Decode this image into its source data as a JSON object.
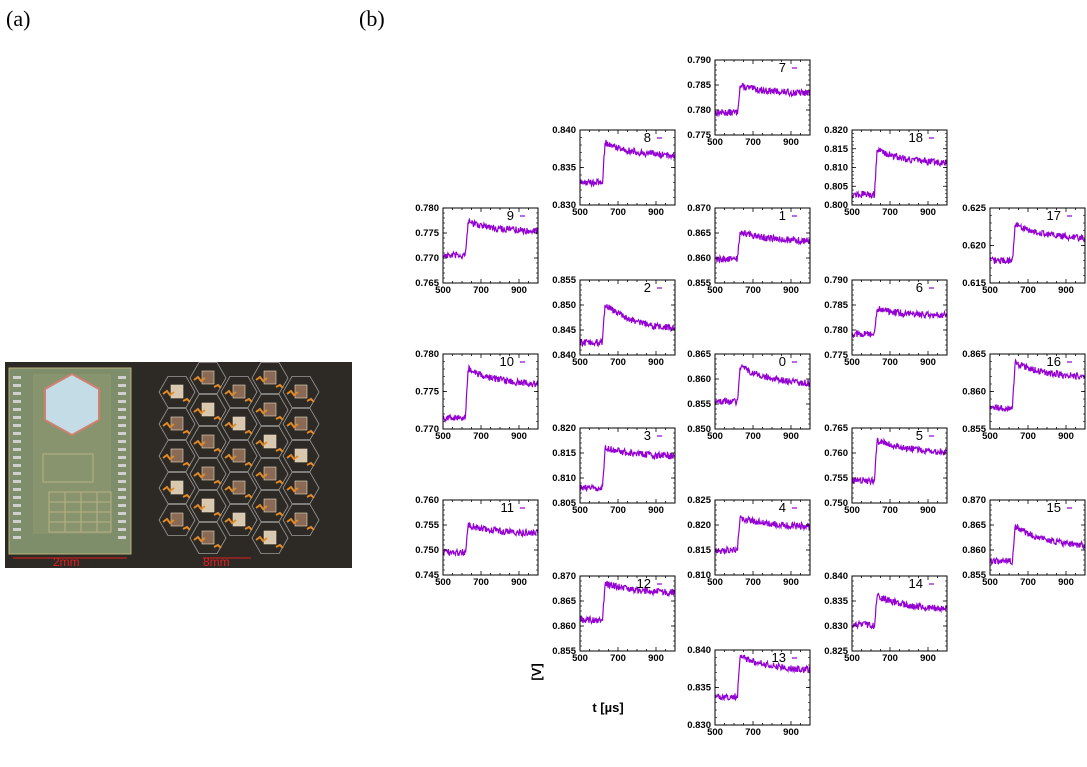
{
  "figure": {
    "label_a": "(a)",
    "label_b": "(b)"
  },
  "photo": {
    "scale_left": "2mm",
    "scale_right": "8mm"
  },
  "axes": {
    "xlabel": "t [µs]",
    "ylabel": "[V]",
    "xticks": [
      "500",
      "700",
      "900"
    ]
  },
  "colors": {
    "trace": "#9400d3",
    "photo_bg": "#2d2925",
    "chip": "#7e8d6a",
    "hex_pad": "#c4dce6",
    "scale_text": "#e02020"
  },
  "chart_data": [
    {
      "type": "line",
      "key": "7",
      "xlim": [
        500,
        1000
      ],
      "ylim": [
        0.775,
        0.79
      ],
      "yticks": [
        "0.790",
        "0.785",
        "0.780",
        "0.775"
      ],
      "baseline": 0.7795,
      "peak": 0.7848,
      "end": 0.7832
    },
    {
      "type": "line",
      "key": "8",
      "xlim": [
        500,
        1000
      ],
      "ylim": [
        0.83,
        0.84
      ],
      "yticks": [
        "0.840",
        "0.835",
        "0.830"
      ],
      "baseline": 0.833,
      "peak": 0.8383,
      "end": 0.8364
    },
    {
      "type": "line",
      "key": "18",
      "xlim": [
        500,
        1000
      ],
      "ylim": [
        0.8,
        0.82
      ],
      "yticks": [
        "0.820",
        "0.815",
        "0.810",
        "0.805",
        "0.800"
      ],
      "baseline": 0.8028,
      "peak": 0.8148,
      "end": 0.8108
    },
    {
      "type": "line",
      "key": "9",
      "xlim": [
        500,
        1000
      ],
      "ylim": [
        0.765,
        0.78
      ],
      "yticks": [
        "0.780",
        "0.775",
        "0.770",
        "0.765"
      ],
      "baseline": 0.7705,
      "peak": 0.7772,
      "end": 0.7752
    },
    {
      "type": "line",
      "key": "1",
      "xlim": [
        500,
        1000
      ],
      "ylim": [
        0.855,
        0.87
      ],
      "yticks": [
        "0.870",
        "0.865",
        "0.860",
        "0.855"
      ],
      "baseline": 0.8598,
      "peak": 0.8652,
      "end": 0.8632
    },
    {
      "type": "line",
      "key": "17",
      "xlim": [
        500,
        1000
      ],
      "ylim": [
        0.615,
        0.625
      ],
      "yticks": [
        "0.625",
        "0.620",
        "0.615"
      ],
      "baseline": 0.618,
      "peak": 0.6228,
      "end": 0.6208
    },
    {
      "type": "line",
      "key": "2",
      "xlim": [
        500,
        1000
      ],
      "ylim": [
        0.84,
        0.855
      ],
      "yticks": [
        "0.855",
        "0.850",
        "0.845",
        "0.840"
      ],
      "baseline": 0.8425,
      "peak": 0.8502,
      "end": 0.8448
    },
    {
      "type": "line",
      "key": "6",
      "xlim": [
        500,
        1000
      ],
      "ylim": [
        0.775,
        0.79
      ],
      "yticks": [
        "0.790",
        "0.785",
        "0.780",
        "0.775"
      ],
      "baseline": 0.7792,
      "peak": 0.7842,
      "end": 0.7828
    },
    {
      "type": "line",
      "key": "10",
      "xlim": [
        500,
        1000
      ],
      "ylim": [
        0.77,
        0.78
      ],
      "yticks": [
        "0.780",
        "0.775",
        "0.770"
      ],
      "baseline": 0.7715,
      "peak": 0.778,
      "end": 0.7758
    },
    {
      "type": "line",
      "key": "0",
      "xlim": [
        500,
        1000
      ],
      "ylim": [
        0.85,
        0.865
      ],
      "yticks": [
        "0.865",
        "0.860",
        "0.855",
        "0.850"
      ],
      "baseline": 0.8555,
      "peak": 0.8625,
      "end": 0.8588
    },
    {
      "type": "line",
      "key": "16",
      "xlim": [
        500,
        1000
      ],
      "ylim": [
        0.855,
        0.865
      ],
      "yticks": [
        "0.865",
        "0.860",
        "0.855"
      ],
      "baseline": 0.8578,
      "peak": 0.8638,
      "end": 0.8618
    },
    {
      "type": "line",
      "key": "3",
      "xlim": [
        500,
        1000
      ],
      "ylim": [
        0.805,
        0.82
      ],
      "yticks": [
        "0.820",
        "0.815",
        "0.810",
        "0.805"
      ],
      "baseline": 0.808,
      "peak": 0.816,
      "end": 0.8142
    },
    {
      "type": "line",
      "key": "5",
      "xlim": [
        500,
        1000
      ],
      "ylim": [
        0.75,
        0.765
      ],
      "yticks": [
        "0.765",
        "0.760",
        "0.755",
        "0.750"
      ],
      "baseline": 0.7545,
      "peak": 0.7625,
      "end": 0.76
    },
    {
      "type": "line",
      "key": "11",
      "xlim": [
        500,
        1000
      ],
      "ylim": [
        0.745,
        0.76
      ],
      "yticks": [
        "0.760",
        "0.755",
        "0.750",
        "0.745"
      ],
      "baseline": 0.7495,
      "peak": 0.755,
      "end": 0.7532
    },
    {
      "type": "line",
      "key": "4",
      "xlim": [
        500,
        1000
      ],
      "ylim": [
        0.81,
        0.825
      ],
      "yticks": [
        "0.825",
        "0.820",
        "0.815",
        "0.810"
      ],
      "baseline": 0.815,
      "peak": 0.8215,
      "end": 0.8195
    },
    {
      "type": "line",
      "key": "15",
      "xlim": [
        500,
        1000
      ],
      "ylim": [
        0.855,
        0.87
      ],
      "yticks": [
        "0.870",
        "0.865",
        "0.860",
        "0.855"
      ],
      "baseline": 0.8578,
      "peak": 0.8648,
      "end": 0.8605
    },
    {
      "type": "line",
      "key": "12",
      "xlim": [
        500,
        1000
      ],
      "ylim": [
        0.855,
        0.87
      ],
      "yticks": [
        "0.870",
        "0.865",
        "0.860",
        "0.855"
      ],
      "baseline": 0.8612,
      "peak": 0.8685,
      "end": 0.8665
    },
    {
      "type": "line",
      "key": "14",
      "xlim": [
        500,
        1000
      ],
      "ylim": [
        0.825,
        0.84
      ],
      "yticks": [
        "0.840",
        "0.835",
        "0.830",
        "0.825"
      ],
      "baseline": 0.8302,
      "peak": 0.836,
      "end": 0.8332
    },
    {
      "type": "line",
      "key": "13",
      "xlim": [
        500,
        1000
      ],
      "ylim": [
        0.83,
        0.84
      ],
      "yticks": [
        "0.840",
        "0.835",
        "0.830"
      ],
      "baseline": 0.8338,
      "peak": 0.8392,
      "end": 0.8372
    }
  ]
}
